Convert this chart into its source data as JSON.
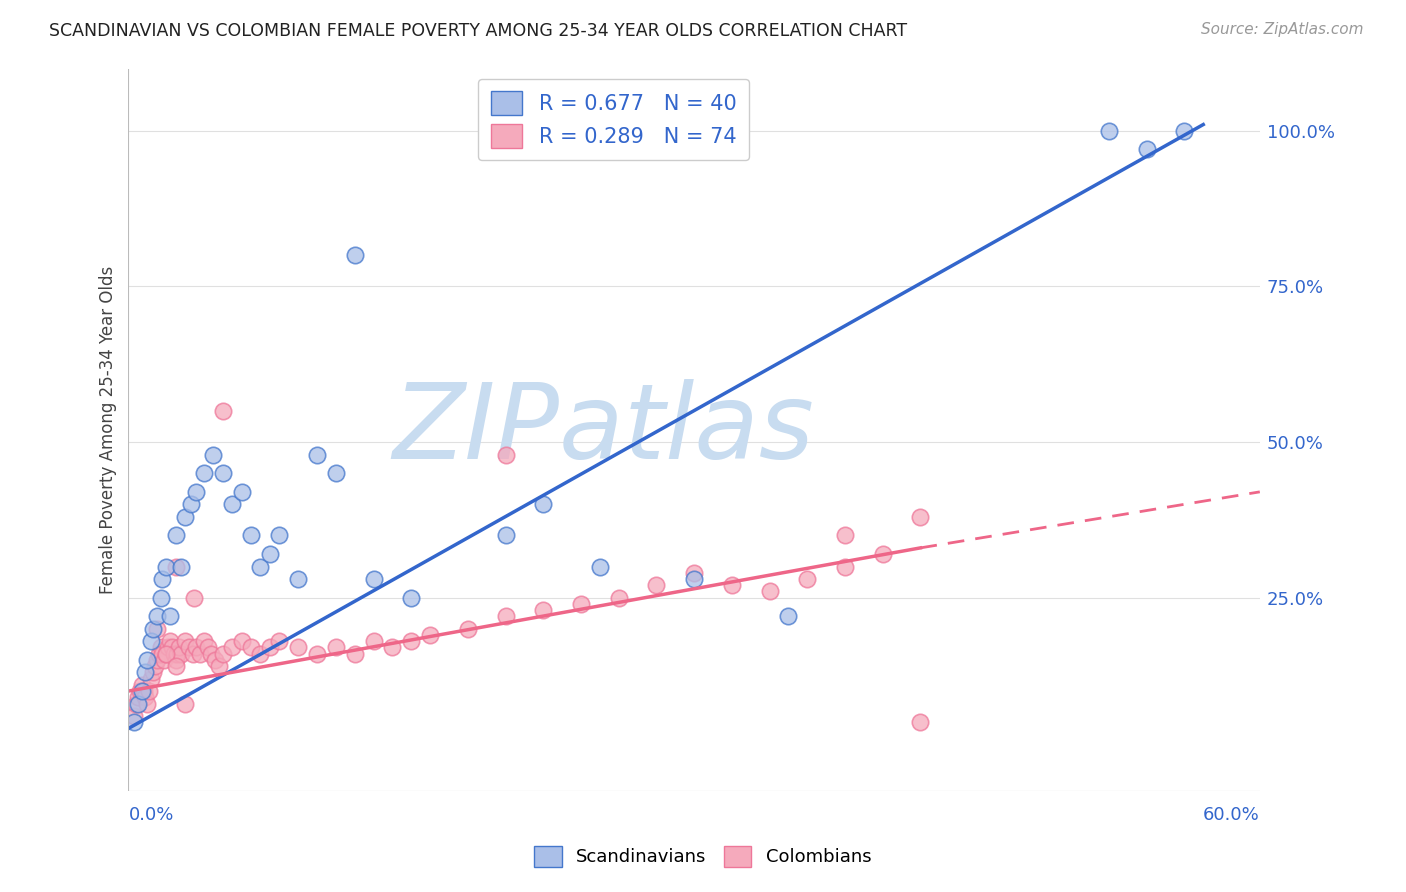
{
  "title": "SCANDINAVIAN VS COLOMBIAN FEMALE POVERTY AMONG 25-34 YEAR OLDS CORRELATION CHART",
  "source": "Source: ZipAtlas.com",
  "ylabel": "Female Poverty Among 25-34 Year Olds",
  "legend_blue_label": "R = 0.677   N = 40",
  "legend_pink_label": "R = 0.289   N = 74",
  "legend_bottom_blue": "Scandinavians",
  "legend_bottom_pink": "Colombians",
  "blue_fill": "#AABFE8",
  "pink_fill": "#F5AABC",
  "blue_edge": "#4477CC",
  "pink_edge": "#EE7799",
  "blue_line": "#3366CC",
  "pink_line": "#EE6688",
  "xlim": [
    0.0,
    0.6
  ],
  "ylim": [
    -0.06,
    1.1
  ],
  "right_ytick_vals": [
    0.0,
    0.25,
    0.5,
    0.75,
    1.0
  ],
  "right_ytick_labels": [
    "",
    "25.0%",
    "50.0%",
    "75.0%",
    "100.0%"
  ],
  "blue_x": [
    0.003,
    0.005,
    0.007,
    0.009,
    0.01,
    0.012,
    0.013,
    0.015,
    0.017,
    0.018,
    0.02,
    0.022,
    0.025,
    0.028,
    0.03,
    0.033,
    0.036,
    0.04,
    0.045,
    0.05,
    0.055,
    0.06,
    0.065,
    0.07,
    0.075,
    0.08,
    0.09,
    0.1,
    0.11,
    0.12,
    0.13,
    0.15,
    0.2,
    0.22,
    0.25,
    0.3,
    0.35,
    0.52,
    0.54,
    0.56
  ],
  "blue_y": [
    0.05,
    0.08,
    0.1,
    0.13,
    0.15,
    0.18,
    0.2,
    0.22,
    0.25,
    0.28,
    0.3,
    0.22,
    0.35,
    0.3,
    0.38,
    0.4,
    0.42,
    0.45,
    0.48,
    0.45,
    0.4,
    0.42,
    0.35,
    0.3,
    0.32,
    0.35,
    0.28,
    0.48,
    0.45,
    0.8,
    0.28,
    0.25,
    0.35,
    0.4,
    0.3,
    0.28,
    0.22,
    1.0,
    0.97,
    1.0
  ],
  "pink_x": [
    0.003,
    0.004,
    0.005,
    0.006,
    0.007,
    0.008,
    0.009,
    0.01,
    0.011,
    0.012,
    0.013,
    0.014,
    0.015,
    0.016,
    0.017,
    0.018,
    0.019,
    0.02,
    0.021,
    0.022,
    0.023,
    0.024,
    0.025,
    0.026,
    0.027,
    0.028,
    0.03,
    0.032,
    0.034,
    0.036,
    0.038,
    0.04,
    0.042,
    0.044,
    0.046,
    0.048,
    0.05,
    0.055,
    0.06,
    0.065,
    0.07,
    0.075,
    0.08,
    0.09,
    0.1,
    0.11,
    0.12,
    0.13,
    0.14,
    0.15,
    0.16,
    0.18,
    0.2,
    0.22,
    0.24,
    0.26,
    0.28,
    0.3,
    0.32,
    0.34,
    0.36,
    0.38,
    0.4,
    0.025,
    0.03,
    0.035,
    0.05,
    0.2,
    0.38,
    0.42,
    0.015,
    0.02,
    0.025,
    0.42
  ],
  "pink_y": [
    0.06,
    0.08,
    0.09,
    0.1,
    0.11,
    0.1,
    0.09,
    0.08,
    0.1,
    0.12,
    0.13,
    0.14,
    0.15,
    0.16,
    0.17,
    0.16,
    0.15,
    0.16,
    0.17,
    0.18,
    0.17,
    0.16,
    0.15,
    0.16,
    0.17,
    0.16,
    0.18,
    0.17,
    0.16,
    0.17,
    0.16,
    0.18,
    0.17,
    0.16,
    0.15,
    0.14,
    0.16,
    0.17,
    0.18,
    0.17,
    0.16,
    0.17,
    0.18,
    0.17,
    0.16,
    0.17,
    0.16,
    0.18,
    0.17,
    0.18,
    0.19,
    0.2,
    0.22,
    0.23,
    0.24,
    0.25,
    0.27,
    0.29,
    0.27,
    0.26,
    0.28,
    0.3,
    0.32,
    0.3,
    0.08,
    0.25,
    0.55,
    0.48,
    0.35,
    0.38,
    0.2,
    0.16,
    0.14,
    0.05
  ],
  "blue_line_x": [
    0.0,
    0.57
  ],
  "blue_line_y": [
    0.04,
    1.01
  ],
  "pink_line_x0": 0.0,
  "pink_line_x1": 0.42,
  "pink_line_x2": 0.6,
  "pink_line_y0": 0.1,
  "pink_line_y1": 0.33,
  "pink_line_y2": 0.42,
  "watermark": "ZIPatlas",
  "watermark_color": "#C8DCF0",
  "bg_color": "#FFFFFF",
  "grid_color": "#E0E0E0",
  "title_color": "#222222",
  "source_color": "#999999",
  "axis_label_color": "#3366CC",
  "ylabel_color": "#444444"
}
